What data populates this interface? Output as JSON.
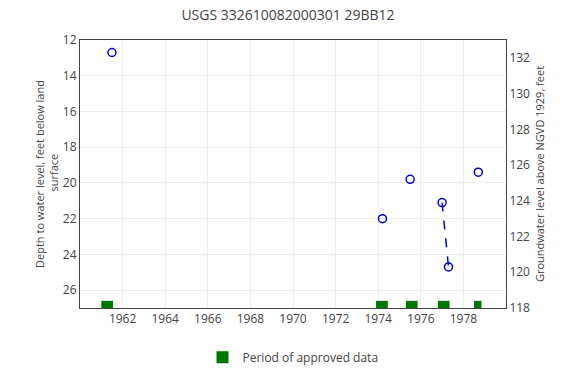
{
  "chart_data": {
    "type": "scatter",
    "title": "USGS 332610082000301 29BB12",
    "ylabel": "Depth to water level, feet below land\n surface",
    "y2label": "Groundwater level above NGVD 1929, feet",
    "xlim": [
      1960,
      1980
    ],
    "xticks": [
      1962,
      1964,
      1966,
      1968,
      1970,
      1972,
      1974,
      1976,
      1978
    ],
    "ylim": [
      27,
      12
    ],
    "yticks": [
      12,
      14,
      16,
      18,
      20,
      22,
      24,
      26
    ],
    "y2lim": [
      118,
      133
    ],
    "y2ticks": [
      118,
      120,
      122,
      124,
      126,
      128,
      130,
      132
    ],
    "grid": true,
    "legend": "bottom",
    "series": [
      {
        "type": "scatter",
        "marker": "open circle",
        "color": "#0000cc",
        "x": [
          1961.5,
          1974.2,
          1975.5,
          1977.0,
          1977.3,
          1978.7
        ],
        "values": [
          12.7,
          22.0,
          19.8,
          21.1,
          24.7,
          19.4
        ]
      },
      {
        "type": "line",
        "line_style": "dashed",
        "color": "#0000cc",
        "x": [
          1977.0,
          1977.3
        ],
        "values": [
          21.1,
          24.7
        ]
      },
      {
        "type": "bar",
        "name": "Period of approved data",
        "color": "#007700",
        "x": [
          1961.0,
          1973.9,
          1975.3,
          1976.8,
          1978.5
        ],
        "widths": [
          0.55,
          0.55,
          0.55,
          0.55,
          0.35
        ]
      }
    ]
  }
}
